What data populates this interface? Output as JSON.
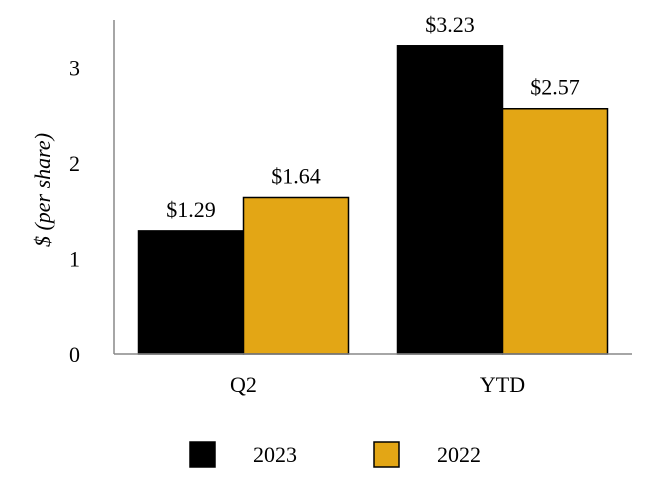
{
  "chart_data": {
    "type": "bar",
    "categories": [
      "Q2",
      "YTD"
    ],
    "series": [
      {
        "name": "2023",
        "values": [
          1.29,
          3.23
        ],
        "labels": [
          "$1.29",
          "$3.23"
        ],
        "color": "#000000"
      },
      {
        "name": "2022",
        "values": [
          1.64,
          2.57
        ],
        "labels": [
          "$1.64",
          "$2.57"
        ],
        "color": "#E3A615"
      }
    ],
    "title": "",
    "xlabel": "",
    "ylabel": "$ (per share)",
    "ylim": [
      0,
      3.5
    ],
    "yticks": [
      0,
      1,
      2,
      3
    ],
    "grid": false,
    "legend_position": "bottom-center"
  }
}
